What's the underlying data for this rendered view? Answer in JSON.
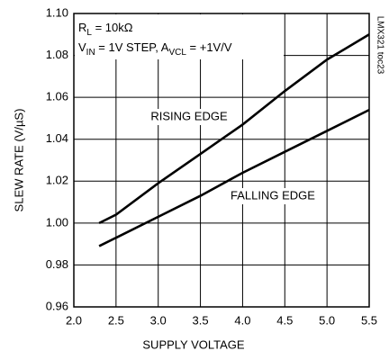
{
  "chart_data": {
    "type": "line",
    "xlabel": "SUPPLY VOLTAGE",
    "ylabel": "SLEW RATE (V/µS)",
    "annotations": [
      [
        "R",
        "L",
        " = 10kΩ"
      ],
      [
        "V",
        "IN",
        " = 1V STEP, A",
        "VCL",
        " = +1V/V"
      ]
    ],
    "side_note": "LMX321 toc23",
    "x": [
      2.3,
      2.5,
      3.0,
      3.5,
      4.0,
      4.5,
      5.0,
      5.5
    ],
    "series": [
      {
        "name": "RISING EDGE",
        "color": "#000000",
        "values": [
          1.0,
          1.004,
          1.019,
          1.033,
          1.047,
          1.063,
          1.078,
          1.09
        ]
      },
      {
        "name": "FALLING EDGE",
        "color": "#000000",
        "values": [
          0.989,
          0.993,
          1.003,
          1.013,
          1.024,
          1.034,
          1.044,
          1.054
        ]
      }
    ],
    "xlim": [
      2.0,
      5.5
    ],
    "xticks": [
      {
        "value": 2,
        "label": "2.0"
      },
      2.5,
      {
        "value": 3,
        "label": "3.0"
      },
      3.5,
      {
        "value": 4,
        "label": "4.0"
      },
      4.5,
      {
        "value": 5,
        "label": "5.0"
      },
      5.5
    ],
    "ylim": [
      0.96,
      1.1
    ],
    "yticks": [
      0.96,
      0.98,
      {
        "value": 1,
        "label": "1.00"
      },
      1.02,
      1.04,
      1.06,
      1.08,
      {
        "value": 1.1,
        "label": "1.10"
      }
    ],
    "grid": true
  }
}
